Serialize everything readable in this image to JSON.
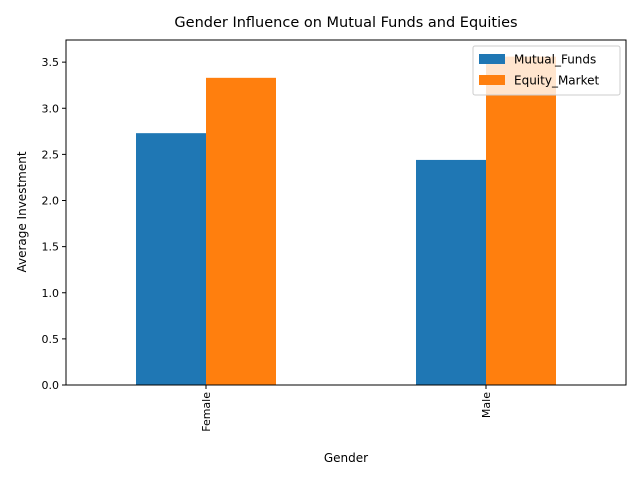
{
  "chart_data": {
    "type": "bar",
    "title": "Gender Influence on Mutual Funds and Equities",
    "xlabel": "Gender",
    "ylabel": "Average Investment",
    "categories": [
      "Female",
      "Male"
    ],
    "series": [
      {
        "name": "Mutual_Funds",
        "color": "#1f77b4",
        "values": [
          2.73,
          2.44
        ]
      },
      {
        "name": "Equity_Market",
        "color": "#ff7f0e",
        "values": [
          3.33,
          3.56
        ]
      }
    ],
    "ylim": [
      0,
      3.74
    ],
    "yticks": [
      "0.0",
      "0.5",
      "1.0",
      "1.5",
      "2.0",
      "2.5",
      "3.0",
      "3.5"
    ],
    "grid": false,
    "legend_position": "top-right"
  }
}
